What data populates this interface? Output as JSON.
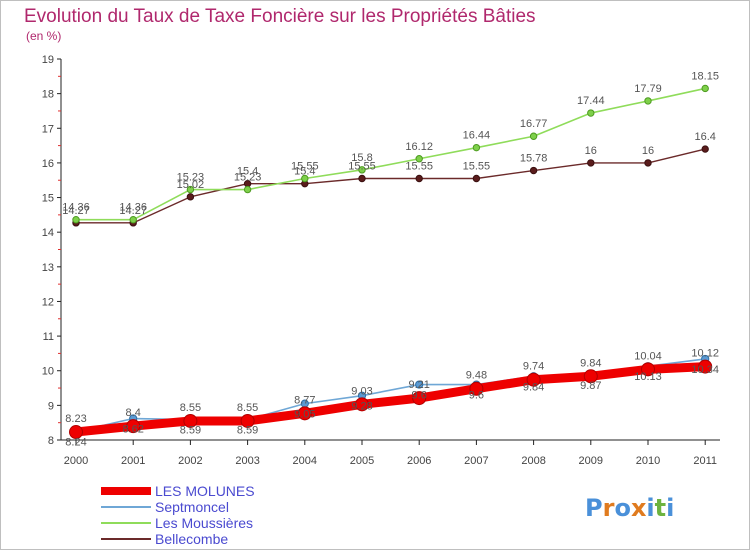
{
  "chart_data": {
    "type": "line",
    "title": "Evolution du Taux de Taxe Foncière sur les Propriétés Bâties",
    "subtitle": "(en %)",
    "xlabel": "",
    "ylabel": "",
    "ylim": [
      8,
      19
    ],
    "yticks": [
      8,
      9,
      10,
      11,
      12,
      13,
      14,
      15,
      16,
      17,
      18,
      19
    ],
    "categories": [
      "2000",
      "2001",
      "2002",
      "2003",
      "2004",
      "2005",
      "2006",
      "2007",
      "2008",
      "2009",
      "2010",
      "2011"
    ],
    "series": [
      {
        "name": "Bellecombe",
        "color": "#6b2a2a",
        "values": [
          14.27,
          14.27,
          15.02,
          15.4,
          15.4,
          15.55,
          15.55,
          15.55,
          15.78,
          16,
          16,
          16.4
        ],
        "labels": [
          "14.27",
          "14.27",
          "15.02",
          "15.4",
          "15.4",
          "15.55",
          "15.55",
          "15.55",
          "15.78",
          "16",
          "16",
          "16.4"
        ]
      },
      {
        "name": "Les Moussières",
        "color": "#8fdc5a",
        "values": [
          14.36,
          14.36,
          15.23,
          15.23,
          15.55,
          15.8,
          16.12,
          16.44,
          16.77,
          17.44,
          17.79,
          18.15
        ],
        "labels": [
          "14.36",
          "14.36",
          "15.23",
          "15.23",
          "15.55",
          "15.8",
          "16.12",
          "16.44",
          "16.77",
          "17.44",
          "17.79",
          "18.15"
        ]
      },
      {
        "name": "Septmoncel",
        "color": "#6fa7d6",
        "values": [
          8.24,
          8.62,
          8.59,
          8.59,
          9.05,
          9.28,
          9.6,
          9.6,
          9.84,
          9.87,
          10.13,
          10.34
        ],
        "labels": [
          "8.24",
          "8.62",
          "8.59",
          "8.59",
          "9.05",
          "9.28",
          "9.6",
          "9.6",
          "9.84",
          "9.87",
          "10.13",
          "10.34"
        ]
      },
      {
        "name": "LES MOLUNES",
        "color": "#ee0000",
        "values": [
          8.23,
          8.4,
          8.55,
          8.55,
          8.77,
          9.03,
          9.21,
          9.48,
          9.74,
          9.84,
          10.04,
          10.12
        ],
        "labels": [
          "8.23",
          "8.4",
          "8.55",
          "8.55",
          "8.77",
          "9.03",
          "9.21",
          "9.48",
          "9.74",
          "9.84",
          "10.04",
          "10.12"
        ]
      }
    ],
    "legend": [
      {
        "name": "LES MOLUNES",
        "color": "#ee0000"
      },
      {
        "name": "Septmoncel",
        "color": "#6fa7d6"
      },
      {
        "name": "Les Moussières",
        "color": "#8fdc5a"
      },
      {
        "name": "Bellecombe",
        "color": "#6b2a2a"
      }
    ],
    "legend_position": "bottom-left",
    "grid": false
  },
  "logo": {
    "text": "Proxiti",
    "letters": [
      "P",
      "r",
      "o",
      "x",
      "i",
      "t",
      "i"
    ],
    "colors": [
      "#4a90d9",
      "#e07b1f",
      "#4a90d9",
      "#e07b1f",
      "#4a90d9",
      "#6db33f",
      "#4a90d9"
    ]
  }
}
